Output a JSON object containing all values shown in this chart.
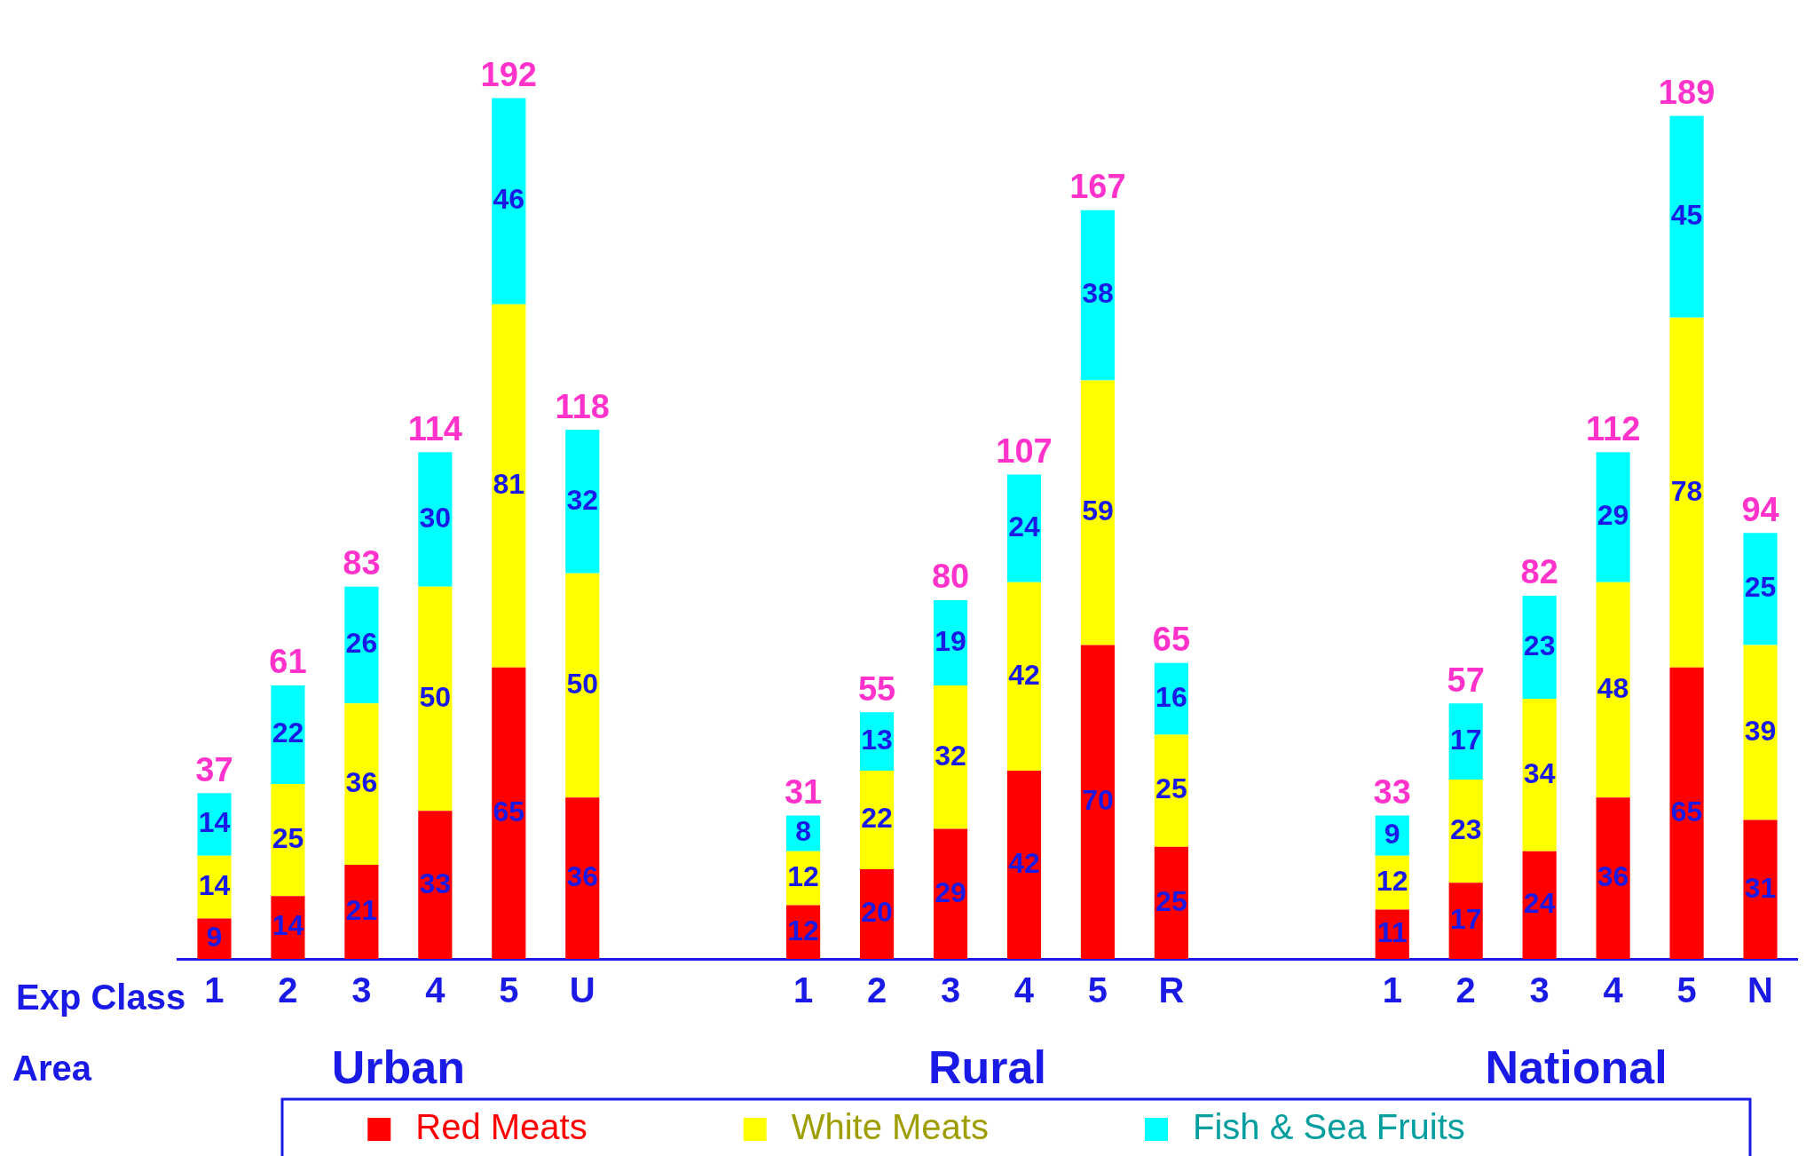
{
  "chart_data": {
    "type": "bar",
    "stacked": true,
    "data_labels": true,
    "grid": false,
    "legend": "bottom",
    "categories": [
      "1",
      "2",
      "3",
      "4",
      "5",
      "U",
      null,
      null,
      "1",
      "2",
      "3",
      "4",
      "5",
      "R",
      null,
      null,
      "1",
      "2",
      "3",
      "4",
      "5",
      "N"
    ],
    "series": [
      {
        "name": "Red Meats",
        "color": "#ff0000",
        "values": [
          9,
          14,
          21,
          33,
          65,
          36,
          null,
          null,
          12,
          20,
          29,
          42,
          70,
          25,
          null,
          null,
          11,
          17,
          24,
          36,
          65,
          31
        ]
      },
      {
        "name": "White Meats",
        "color": "#ffff00",
        "values": [
          14,
          25,
          36,
          50,
          81,
          50,
          null,
          null,
          12,
          22,
          32,
          42,
          59,
          25,
          null,
          null,
          12,
          23,
          34,
          48,
          78,
          39
        ]
      },
      {
        "name": "Fish & Sea Fruits",
        "color": "#00ffff",
        "values": [
          14,
          22,
          26,
          30,
          46,
          32,
          null,
          null,
          8,
          13,
          19,
          24,
          38,
          16,
          null,
          null,
          9,
          17,
          23,
          29,
          45,
          25
        ]
      }
    ],
    "totals": [
      "37",
      "61",
      "83",
      "114",
      "192",
      "118",
      null,
      null,
      "31",
      "55",
      "80",
      "107",
      "167",
      "65",
      null,
      null,
      "33",
      "57",
      "82",
      "112",
      "189",
      "94"
    ],
    "annotations": [
      "Exp Class",
      "Area",
      "Urban",
      "Rural",
      "National"
    ]
  }
}
